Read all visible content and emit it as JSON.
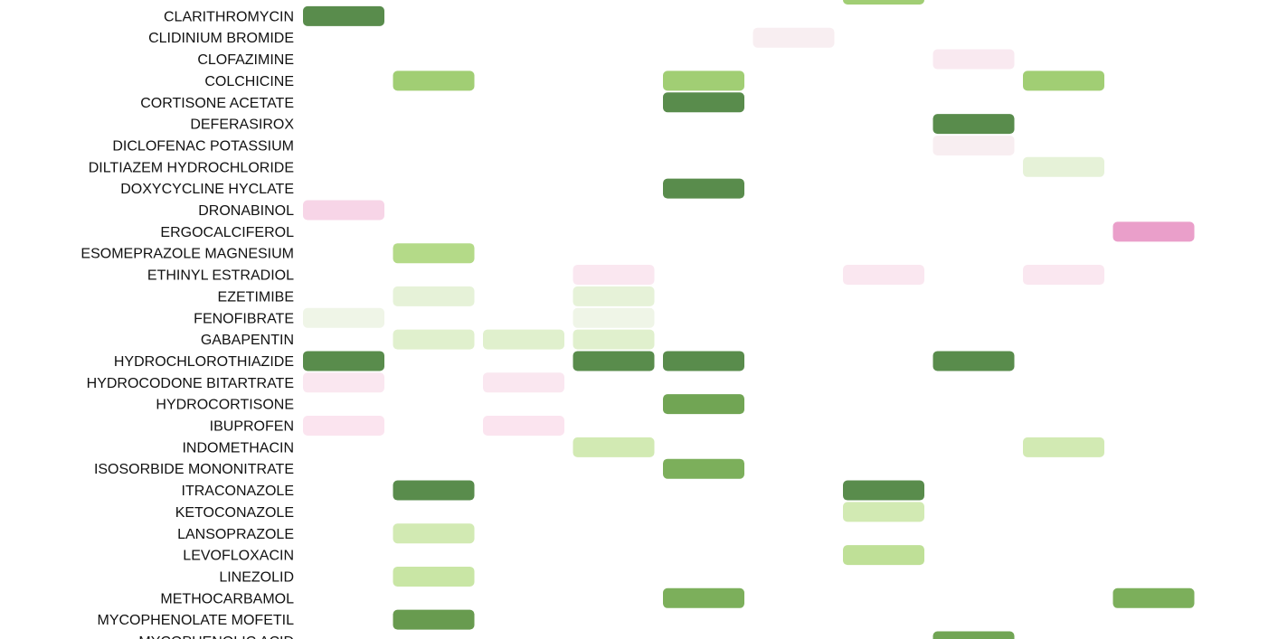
{
  "chart_data": {
    "type": "heatmap",
    "columns": 10,
    "rows": [
      {
        "label": "",
        "cells": [
          null,
          null,
          null,
          null,
          null,
          null,
          0.55,
          null,
          null,
          null
        ]
      },
      {
        "label": "CLARITHROMYCIN",
        "cells": [
          0.95,
          null,
          null,
          null,
          null,
          null,
          null,
          null,
          null,
          null
        ]
      },
      {
        "label": "CLIDINIUM BROMIDE",
        "cells": [
          null,
          null,
          null,
          null,
          null,
          -0.05,
          null,
          null,
          null,
          null
        ]
      },
      {
        "label": "CLOFAZIMINE",
        "cells": [
          null,
          null,
          null,
          null,
          null,
          null,
          null,
          -0.15,
          null,
          null
        ]
      },
      {
        "label": "COLCHICINE",
        "cells": [
          null,
          0.55,
          null,
          null,
          0.55,
          null,
          null,
          null,
          0.55,
          null
        ]
      },
      {
        "label": "CORTISONE ACETATE",
        "cells": [
          null,
          null,
          null,
          null,
          0.95,
          null,
          null,
          null,
          null,
          null
        ]
      },
      {
        "label": "DEFERASIROX",
        "cells": [
          null,
          null,
          null,
          null,
          null,
          null,
          null,
          0.95,
          null,
          null
        ]
      },
      {
        "label": "DICLOFENAC POTASSIUM",
        "cells": [
          null,
          null,
          null,
          null,
          null,
          null,
          null,
          -0.05,
          null,
          null
        ]
      },
      {
        "label": "DILTIAZEM HYDROCHLORIDE",
        "cells": [
          null,
          null,
          null,
          null,
          null,
          null,
          null,
          null,
          0.15,
          null
        ]
      },
      {
        "label": "DOXYCYCLINE HYCLATE",
        "cells": [
          null,
          null,
          null,
          null,
          0.95,
          null,
          null,
          null,
          null,
          null
        ]
      },
      {
        "label": "DRONABINOL",
        "cells": [
          -0.5,
          null,
          null,
          null,
          null,
          null,
          null,
          null,
          null,
          null
        ]
      },
      {
        "label": "ERGOCALCIFEROL",
        "cells": [
          null,
          null,
          null,
          null,
          null,
          null,
          null,
          null,
          null,
          -0.9
        ]
      },
      {
        "label": "ESOMEPRAZOLE MAGNESIUM",
        "cells": [
          null,
          0.45,
          null,
          null,
          null,
          null,
          null,
          null,
          null,
          null
        ]
      },
      {
        "label": "ETHINYL ESTRADIOL",
        "cells": [
          null,
          null,
          null,
          -0.2,
          null,
          null,
          -0.2,
          null,
          -0.2,
          null
        ]
      },
      {
        "label": "EZETIMIBE",
        "cells": [
          null,
          0.15,
          null,
          0.15,
          null,
          null,
          null,
          null,
          null,
          null
        ]
      },
      {
        "label": "FENOFIBRATE",
        "cells": [
          0.05,
          null,
          null,
          0.05,
          null,
          null,
          null,
          null,
          null,
          null
        ]
      },
      {
        "label": "GABAPENTIN",
        "cells": [
          null,
          0.2,
          0.2,
          0.2,
          null,
          null,
          null,
          null,
          null,
          null
        ]
      },
      {
        "label": "HYDROCHLOROTHIAZIDE",
        "cells": [
          0.95,
          null,
          null,
          0.95,
          0.95,
          null,
          null,
          0.95,
          null,
          null
        ]
      },
      {
        "label": "HYDROCODONE BITARTRATE",
        "cells": [
          -0.2,
          null,
          -0.2,
          null,
          null,
          null,
          null,
          null,
          null,
          null
        ]
      },
      {
        "label": "HYDROCORTISONE",
        "cells": [
          null,
          null,
          null,
          null,
          0.8,
          null,
          null,
          null,
          null,
          null
        ]
      },
      {
        "label": "IBUPROFEN",
        "cells": [
          -0.25,
          null,
          -0.25,
          null,
          null,
          null,
          null,
          null,
          null,
          null
        ]
      },
      {
        "label": "INDOMETHACIN",
        "cells": [
          null,
          null,
          null,
          0.3,
          null,
          null,
          null,
          null,
          0.3,
          null
        ]
      },
      {
        "label": "ISOSORBIDE MONONITRATE",
        "cells": [
          null,
          null,
          null,
          null,
          0.75,
          null,
          null,
          null,
          null,
          null
        ]
      },
      {
        "label": "ITRACONAZOLE",
        "cells": [
          null,
          0.95,
          null,
          null,
          null,
          null,
          0.95,
          null,
          null,
          null
        ]
      },
      {
        "label": "KETOCONAZOLE",
        "cells": [
          null,
          null,
          null,
          null,
          null,
          null,
          0.3,
          null,
          null,
          null
        ]
      },
      {
        "label": "LANSOPRAZOLE",
        "cells": [
          null,
          0.3,
          null,
          null,
          null,
          null,
          null,
          null,
          null,
          null
        ]
      },
      {
        "label": "LEVOFLOXACIN",
        "cells": [
          null,
          null,
          null,
          null,
          null,
          null,
          0.4,
          null,
          null,
          null
        ]
      },
      {
        "label": "LINEZOLID",
        "cells": [
          null,
          0.35,
          null,
          null,
          null,
          null,
          null,
          null,
          null,
          null
        ]
      },
      {
        "label": "METHOCARBAMOL",
        "cells": [
          null,
          null,
          null,
          null,
          0.75,
          null,
          null,
          null,
          null,
          0.75
        ]
      },
      {
        "label": "MYCOPHENOLATE MOFETIL",
        "cells": [
          null,
          0.85,
          null,
          null,
          null,
          null,
          null,
          null,
          null,
          null
        ]
      },
      {
        "label": "MYCOPHENOLIC ACID",
        "cells": [
          null,
          null,
          null,
          null,
          null,
          null,
          null,
          0.8,
          null,
          null
        ]
      }
    ]
  }
}
